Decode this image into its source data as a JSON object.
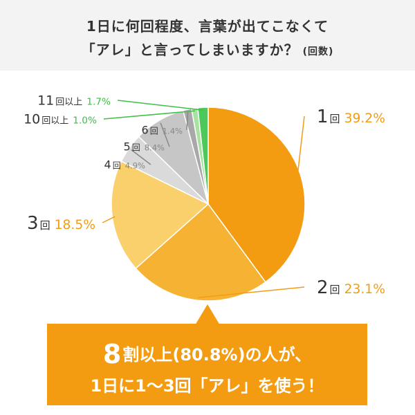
{
  "header": {
    "title_line1": "1日に何回程度、言葉が出てこなくて",
    "title_line2": "「アレ」と言ってしまいますか？",
    "title_suffix": "(回数)"
  },
  "chart_data": {
    "type": "pie",
    "unit_label": "回",
    "slices": [
      {
        "label": "1",
        "unit": "回",
        "value": 39.2,
        "value_text": "39.2%",
        "color": "#f39c12",
        "label_color": "#f39c12"
      },
      {
        "label": "2",
        "unit": "回",
        "value": 23.1,
        "value_text": "23.1%",
        "color": "#f6b233",
        "label_color": "#f39c12"
      },
      {
        "label": "3",
        "unit": "回",
        "value": 18.5,
        "value_text": "18.5%",
        "color": "#fad06c",
        "label_color": "#f39c12"
      },
      {
        "label": "4",
        "unit": "回",
        "value": 4.9,
        "value_text": "4.9%",
        "color": "#dadada",
        "label_color": "#888888"
      },
      {
        "label": "5",
        "unit": "回",
        "value": 8.4,
        "value_text": "8.4%",
        "color": "#c6c6c6",
        "label_color": "#888888"
      },
      {
        "label": "6",
        "unit": "回",
        "value": 1.4,
        "value_text": "1.4%",
        "color": "#a8a8a8",
        "label_color": "#888888"
      },
      {
        "label": "10",
        "unit": "回以上",
        "value": 1.0,
        "value_text": "1.0%",
        "color": "#a8e2a0",
        "label_color": "#3cc046"
      },
      {
        "label": "11",
        "unit": "回以上",
        "value": 1.7,
        "value_text": "1.7%",
        "color": "#4cc95a",
        "label_color": "#3cc046"
      }
    ]
  },
  "callout": {
    "big_number": "8",
    "line1_rest": "割以上(80.8%)の人が、",
    "line2": "1日に1〜3回「アレ」を使う！"
  },
  "colors": {
    "header_bg": "#f3f3f3",
    "accent_orange": "#f39c12",
    "accent_green": "#3cc046"
  }
}
